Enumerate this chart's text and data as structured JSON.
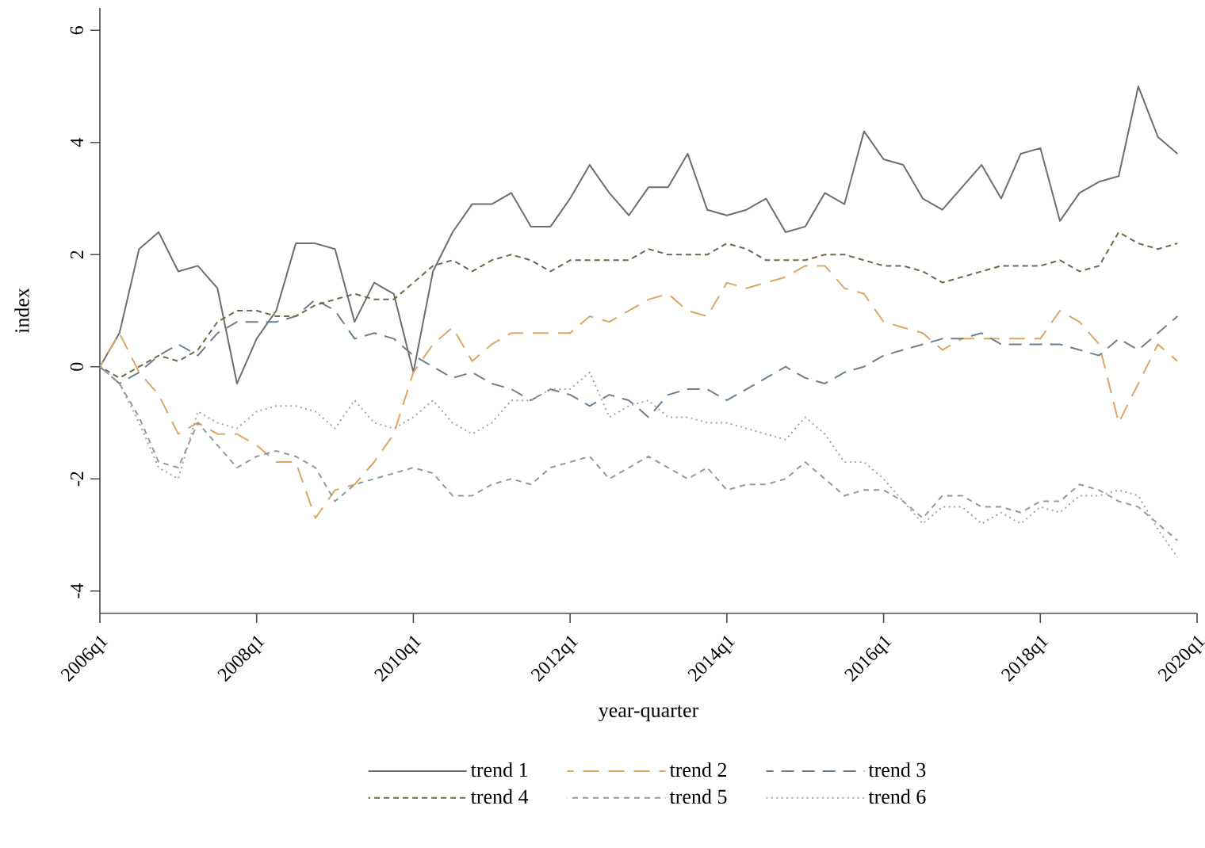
{
  "chart_data": {
    "type": "line",
    "xlabel": "year-quarter",
    "ylabel": "index",
    "categories": [
      "2006q1",
      null,
      null,
      null,
      null,
      null,
      null,
      null,
      "2008q1",
      null,
      null,
      null,
      null,
      null,
      null,
      null,
      "2010q1",
      null,
      null,
      null,
      null,
      null,
      null,
      null,
      "2012q1",
      null,
      null,
      null,
      null,
      null,
      null,
      null,
      "2014q1",
      null,
      null,
      null,
      null,
      null,
      null,
      null,
      "2016q1",
      null,
      null,
      null,
      null,
      null,
      null,
      null,
      "2018q1",
      null,
      null,
      null,
      null,
      null,
      null,
      null,
      "2020q1"
    ],
    "series": [
      {
        "name": "trend 1",
        "color": "#6e6e6e",
        "line_style": "solid",
        "values": [
          0,
          0.6,
          2.1,
          2.4,
          1.7,
          1.8,
          1.4,
          -0.3,
          0.5,
          1.0,
          2.2,
          2.2,
          2.1,
          0.8,
          1.5,
          1.3,
          -0.1,
          1.7,
          2.4,
          2.9,
          2.9,
          3.1,
          2.5,
          2.5,
          3.0,
          3.6,
          3.1,
          2.7,
          3.2,
          3.2,
          3.8,
          2.8,
          2.7,
          2.8,
          3.0,
          2.4,
          2.5,
          3.1,
          2.9,
          4.2,
          3.7,
          3.6,
          3.0,
          2.8,
          3.2,
          3.6,
          3.0,
          3.8,
          3.9,
          2.6,
          3.1,
          3.3,
          3.4,
          5.0,
          4.1,
          3.8,
          null
        ]
      },
      {
        "name": "trend 2",
        "color": "#dca566",
        "line_style": "dashed",
        "values": [
          0,
          0.6,
          -0.1,
          -0.5,
          -1.2,
          -1.0,
          -1.2,
          -1.2,
          -1.4,
          -1.7,
          -1.7,
          -2.7,
          -2.2,
          -2.1,
          -1.7,
          -1.2,
          -0.1,
          0.4,
          0.7,
          0.1,
          0.4,
          0.6,
          0.6,
          0.6,
          0.6,
          0.9,
          0.8,
          1.0,
          1.2,
          1.3,
          1.0,
          0.9,
          1.5,
          1.4,
          1.5,
          1.6,
          1.8,
          1.8,
          1.4,
          1.3,
          0.8,
          0.7,
          0.6,
          0.3,
          0.5,
          0.5,
          0.5,
          0.5,
          0.5,
          1.0,
          0.8,
          0.4,
          -1.0,
          -0.3,
          0.4,
          0.1,
          null
        ]
      },
      {
        "name": "trend 3",
        "color": "#6b7f8e",
        "line_style": "dashed",
        "values": [
          0,
          -0.3,
          -0.1,
          0.2,
          0.4,
          0.2,
          0.6,
          0.8,
          0.8,
          0.8,
          0.9,
          1.2,
          1.0,
          0.5,
          0.6,
          0.5,
          0.2,
          0.0,
          -0.2,
          -0.1,
          -0.3,
          -0.4,
          -0.6,
          -0.4,
          -0.5,
          -0.7,
          -0.5,
          -0.6,
          -0.9,
          -0.5,
          -0.4,
          -0.4,
          -0.6,
          -0.4,
          -0.2,
          0.0,
          -0.2,
          -0.3,
          -0.1,
          0.0,
          0.2,
          0.3,
          0.4,
          0.5,
          0.5,
          0.6,
          0.4,
          0.4,
          0.4,
          0.4,
          0.3,
          0.2,
          0.5,
          0.3,
          0.6,
          0.9,
          null
        ]
      },
      {
        "name": "trend 4",
        "color": "#6b6848",
        "line_style": "dashed",
        "values": [
          0,
          -0.2,
          0,
          0.2,
          0.1,
          0.3,
          0.8,
          1.0,
          1.0,
          0.9,
          0.9,
          1.1,
          1.2,
          1.3,
          1.2,
          1.2,
          1.5,
          1.8,
          1.9,
          1.7,
          1.9,
          2.0,
          1.9,
          1.7,
          1.9,
          1.9,
          1.9,
          1.9,
          2.1,
          2.0,
          2.0,
          2.0,
          2.2,
          2.1,
          1.9,
          1.9,
          1.9,
          2.0,
          2.0,
          1.9,
          1.8,
          1.8,
          1.7,
          1.5,
          1.6,
          1.7,
          1.8,
          1.8,
          1.8,
          1.9,
          1.7,
          1.8,
          2.4,
          2.2,
          2.1,
          2.2,
          null
        ]
      },
      {
        "name": "trend 5",
        "color": "#8f9c9c",
        "line_style": "dashed",
        "values": [
          0,
          -0.3,
          -0.9,
          -1.7,
          -1.8,
          -1.0,
          -1.4,
          -1.8,
          -1.6,
          -1.5,
          -1.6,
          -1.8,
          -2.4,
          -2.1,
          -2.0,
          -1.9,
          -1.8,
          -1.9,
          -2.3,
          -2.3,
          -2.1,
          -2.0,
          -2.1,
          -1.8,
          -1.7,
          -1.6,
          -2.0,
          -1.8,
          -1.6,
          -1.8,
          -2.0,
          -1.8,
          -2.2,
          -2.1,
          -2.1,
          -2.0,
          -1.7,
          -2.0,
          -2.3,
          -2.2,
          -2.2,
          -2.4,
          -2.7,
          -2.3,
          -2.3,
          -2.5,
          -2.5,
          -2.6,
          -2.4,
          -2.4,
          -2.1,
          -2.2,
          -2.4,
          -2.5,
          -2.8,
          -3.1,
          null
        ]
      },
      {
        "name": "trend 6",
        "color": "#b89a98",
        "line_style": "dotted",
        "values": [
          0,
          -0.3,
          -1.0,
          -1.8,
          -2.0,
          -0.8,
          -1.0,
          -1.1,
          -0.8,
          -0.7,
          -0.7,
          -0.8,
          -1.1,
          -0.6,
          -1.0,
          -1.1,
          -0.9,
          -0.6,
          -1.0,
          -1.2,
          -1.0,
          -0.6,
          -0.6,
          -0.4,
          -0.4,
          -0.1,
          -0.9,
          -0.7,
          -0.6,
          -0.9,
          -0.9,
          -1.0,
          -1.0,
          -1.1,
          -1.2,
          -1.3,
          -0.9,
          -1.2,
          -1.7,
          -1.7,
          -2.0,
          -2.4,
          -2.8,
          -2.5,
          -2.5,
          -2.8,
          -2.6,
          -2.8,
          -2.5,
          -2.6,
          -2.3,
          -2.3,
          -2.2,
          -2.3,
          -2.9,
          -3.4,
          null
        ]
      }
    ],
    "ylim": [
      -4.4,
      6.4
    ],
    "yticks": [
      -4,
      -2,
      0,
      2,
      4,
      6
    ],
    "legend": "bottom"
  }
}
